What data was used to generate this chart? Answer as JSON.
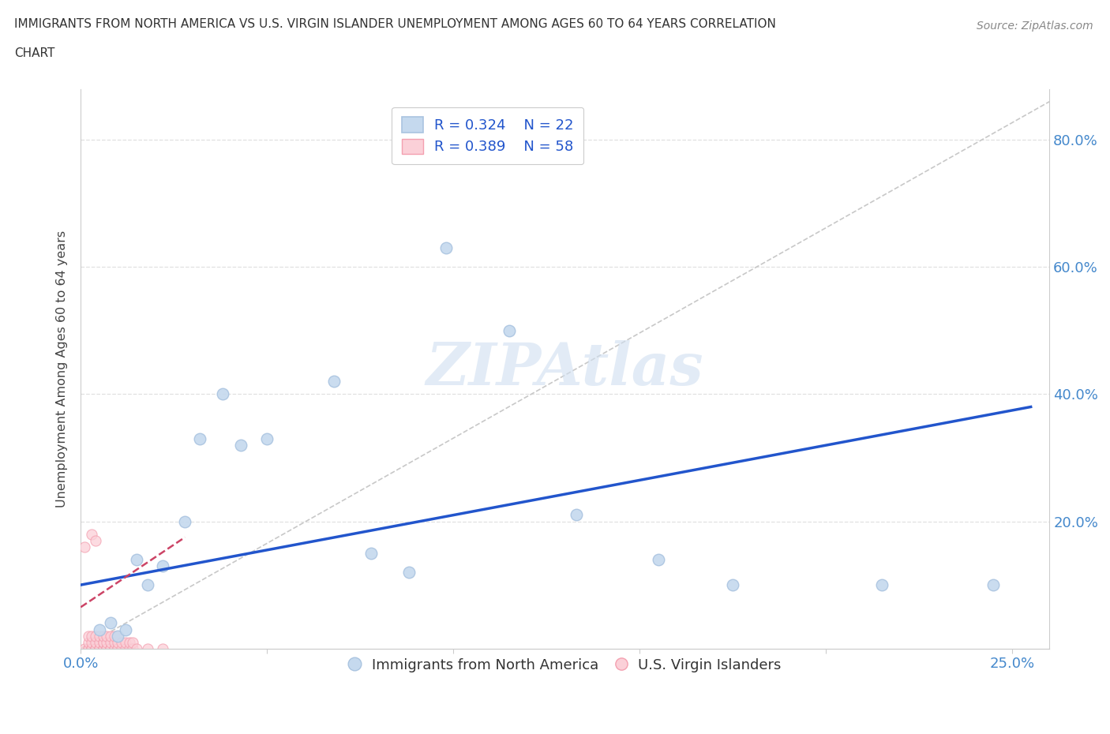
{
  "title_line1": "IMMIGRANTS FROM NORTH AMERICA VS U.S. VIRGIN ISLANDER UNEMPLOYMENT AMONG AGES 60 TO 64 YEARS CORRELATION",
  "title_line2": "CHART",
  "source_text": "Source: ZipAtlas.com",
  "ylabel": "Unemployment Among Ages 60 to 64 years",
  "xlim": [
    0.0,
    0.26
  ],
  "ylim": [
    0.0,
    0.88
  ],
  "xticks": [
    0.0,
    0.05,
    0.1,
    0.15,
    0.2,
    0.25
  ],
  "xticklabels": [
    "0.0%",
    "",
    "",
    "",
    "",
    "25.0%"
  ],
  "yticks": [
    0.0,
    0.2,
    0.4,
    0.6,
    0.8
  ],
  "yticklabels": [
    "",
    "20.0%",
    "40.0%",
    "60.0%",
    "80.0%"
  ],
  "blue_scatter_x": [
    0.005,
    0.008,
    0.01,
    0.012,
    0.015,
    0.018,
    0.022,
    0.028,
    0.032,
    0.038,
    0.043,
    0.05,
    0.068,
    0.078,
    0.088,
    0.098,
    0.115,
    0.133,
    0.155,
    0.175,
    0.215,
    0.245
  ],
  "blue_scatter_y": [
    0.03,
    0.04,
    0.02,
    0.03,
    0.14,
    0.1,
    0.13,
    0.2,
    0.33,
    0.4,
    0.32,
    0.33,
    0.42,
    0.15,
    0.12,
    0.63,
    0.5,
    0.21,
    0.14,
    0.1,
    0.1,
    0.1
  ],
  "pink_scatter_x": [
    0.001,
    0.001,
    0.002,
    0.002,
    0.002,
    0.002,
    0.003,
    0.003,
    0.003,
    0.003,
    0.003,
    0.003,
    0.004,
    0.004,
    0.004,
    0.004,
    0.004,
    0.004,
    0.005,
    0.005,
    0.005,
    0.005,
    0.005,
    0.006,
    0.006,
    0.006,
    0.006,
    0.006,
    0.006,
    0.007,
    0.007,
    0.007,
    0.007,
    0.007,
    0.008,
    0.008,
    0.008,
    0.008,
    0.008,
    0.009,
    0.009,
    0.009,
    0.009,
    0.01,
    0.01,
    0.01,
    0.01,
    0.011,
    0.011,
    0.012,
    0.012,
    0.013,
    0.013,
    0.014,
    0.014,
    0.015,
    0.018,
    0.022
  ],
  "pink_scatter_y": [
    0.0,
    0.16,
    0.0,
    0.0,
    0.01,
    0.02,
    0.0,
    0.0,
    0.0,
    0.01,
    0.02,
    0.18,
    0.0,
    0.0,
    0.0,
    0.01,
    0.02,
    0.17,
    0.0,
    0.0,
    0.0,
    0.01,
    0.02,
    0.0,
    0.0,
    0.0,
    0.01,
    0.01,
    0.02,
    0.0,
    0.0,
    0.0,
    0.01,
    0.02,
    0.0,
    0.0,
    0.0,
    0.01,
    0.02,
    0.0,
    0.0,
    0.01,
    0.02,
    0.0,
    0.0,
    0.01,
    0.02,
    0.0,
    0.01,
    0.0,
    0.01,
    0.0,
    0.01,
    0.0,
    0.01,
    0.0,
    0.0,
    0.0
  ],
  "blue_line_x": [
    0.0,
    0.255
  ],
  "blue_line_y": [
    0.1,
    0.38
  ],
  "pink_line_x": [
    0.0,
    0.028
  ],
  "pink_line_y": [
    0.065,
    0.175
  ],
  "ref_line_x": [
    0.0,
    0.26
  ],
  "ref_line_y": [
    0.0,
    0.86
  ],
  "R_blue": "0.324",
  "N_blue": "22",
  "R_pink": "0.389",
  "N_pink": "58",
  "blue_dot_color": "#aac4e0",
  "blue_dot_fill": "#c5d9ee",
  "pink_dot_color": "#f4a0b0",
  "pink_dot_fill": "#fbd0d8",
  "trend_blue": "#2255cc",
  "trend_pink": "#cc4466",
  "ref_line_color": "#c8c8c8",
  "grid_color": "#e0e0e0",
  "axis_label_color": "#4488cc",
  "title_color": "#333333",
  "legend_text_color": "#2255cc",
  "watermark_color": "#d0dff0",
  "background_color": "#ffffff"
}
